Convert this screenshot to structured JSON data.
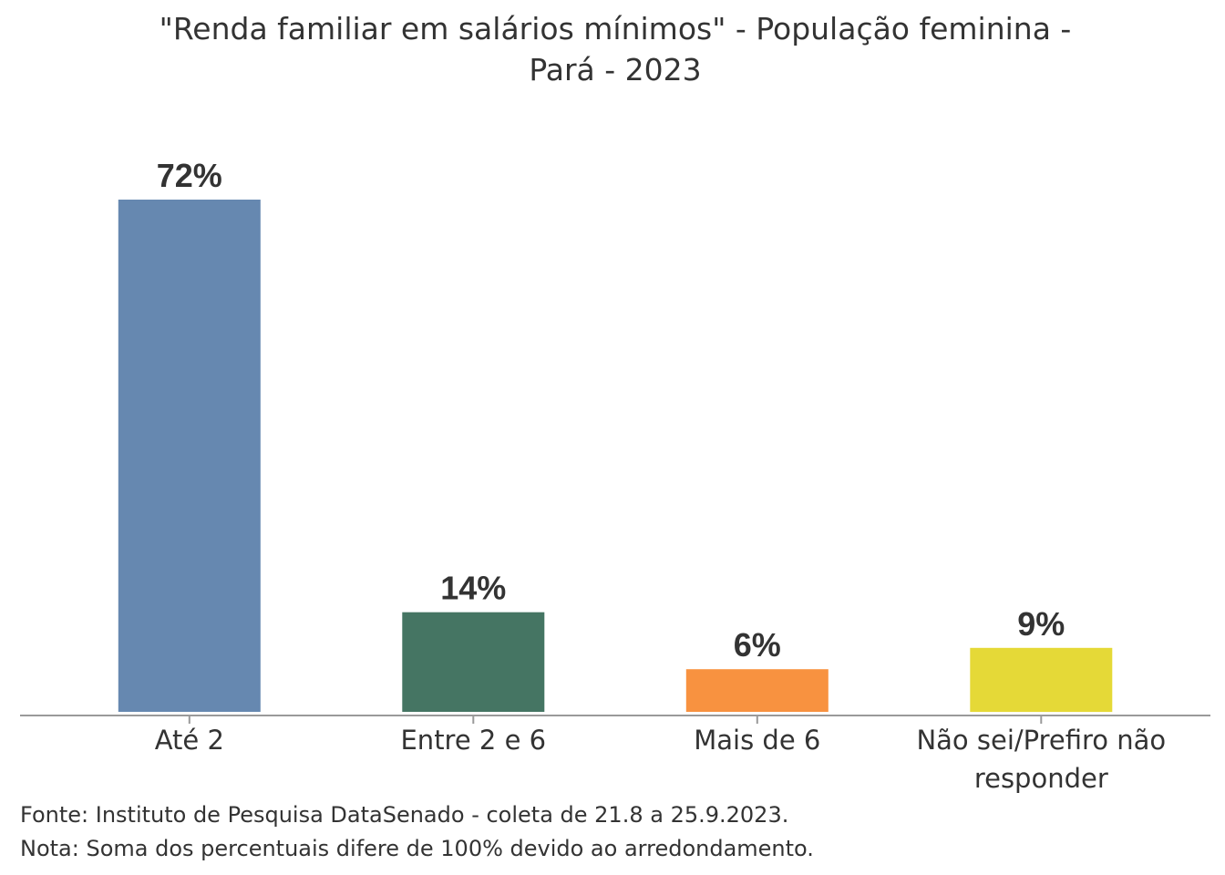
{
  "chart_data": {
    "type": "bar",
    "title_lines": [
      "\"Renda familiar em salários mínimos\" - População feminina -",
      "Pará - 2023"
    ],
    "categories": [
      [
        "Até 2"
      ],
      [
        "Entre 2 e 6"
      ],
      [
        "Mais de 6"
      ],
      [
        "Não sei/Prefiro não",
        "responder"
      ]
    ],
    "values": [
      72,
      14,
      6,
      9
    ],
    "value_labels": [
      "72%",
      "14%",
      "6%",
      "9%"
    ],
    "colors": [
      "#6688b0",
      "#457563",
      "#f89240",
      "#e5d937"
    ],
    "ylim": [
      0,
      72
    ],
    "grid": false,
    "xlabel": "",
    "ylabel": ""
  },
  "footnotes": [
    "Fonte: Instituto de Pesquisa DataSenado - coleta de 21.8 a 25.9.2023.",
    "Nota: Soma dos percentuais difere de 100% devido ao arredondamento."
  ]
}
